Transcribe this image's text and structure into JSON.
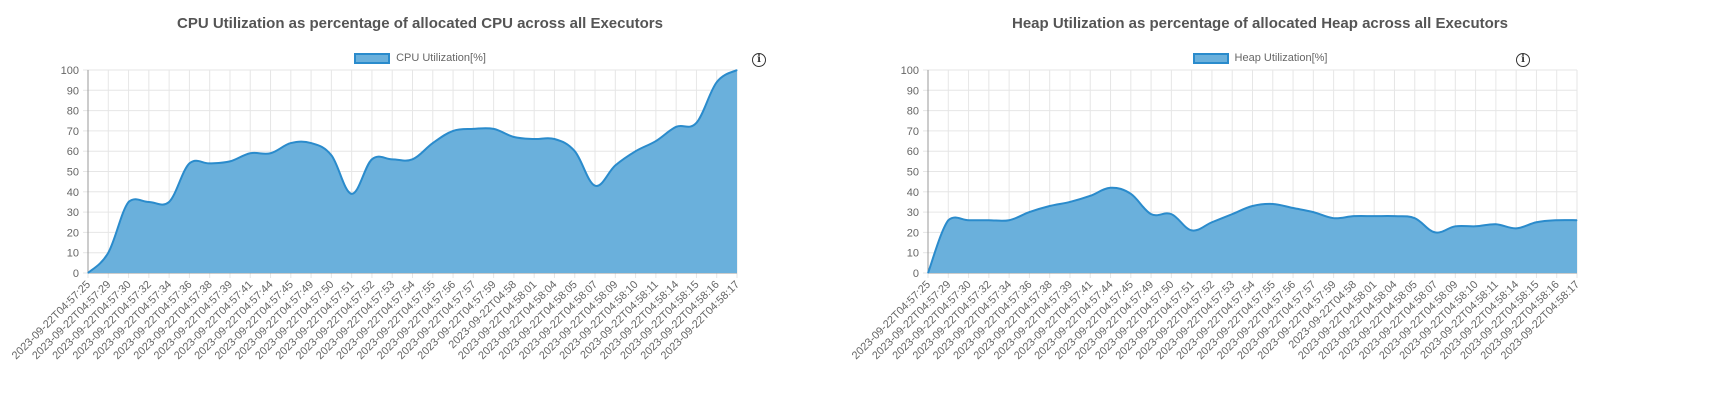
{
  "colors": {
    "fill": "#6ab0dc",
    "line": "#2a8bcc",
    "grid": "#e6e6e6",
    "axis": "#999999"
  },
  "info_icon": {
    "icon": "info-circle-icon",
    "glyph": "i"
  },
  "chart_data": [
    {
      "type": "area",
      "title": "CPU Utilization as percentage of allocated CPU across all Executors",
      "legend": "CPU Utilization[%]",
      "legend_position": "top-center",
      "grid": true,
      "ylim": [
        0,
        100
      ],
      "yticks": [
        0,
        10,
        20,
        30,
        40,
        50,
        60,
        70,
        80,
        90,
        100
      ],
      "x": [
        "2023-09-22T04:57:25",
        "2023-09-22T04:57:29",
        "2023-09-22T04:57:30",
        "2023-09-22T04:57:32",
        "2023-09-22T04:57:34",
        "2023-09-22T04:57:36",
        "2023-09-22T04:57:38",
        "2023-09-22T04:57:39",
        "2023-09-22T04:57:41",
        "2023-09-22T04:57:44",
        "2023-09-22T04:57:45",
        "2023-09-22T04:57:49",
        "2023-09-22T04:57:50",
        "2023-09-22T04:57:51",
        "2023-09-22T04:57:52",
        "2023-09-22T04:57:53",
        "2023-09-22T04:57:54",
        "2023-09-22T04:57:55",
        "2023-09-22T04:57:56",
        "2023-09-22T04:57:57",
        "2023-09-22T04:57:59",
        "2023-09-22T04:58",
        "2023-09-22T04:58:01",
        "2023-09-22T04:58:04",
        "2023-09-22T04:58:05",
        "2023-09-22T04:58:07",
        "2023-09-22T04:58:09",
        "2023-09-22T04:58:10",
        "2023-09-22T04:58:11",
        "2023-09-22T04:58:14",
        "2023-09-22T04:58:15",
        "2023-09-22T04:58:16",
        "2023-09-22T04:58:17"
      ],
      "series": [
        {
          "name": "CPU Utilization[%]",
          "values": [
            0,
            10,
            35,
            35,
            35,
            54,
            54,
            55,
            59,
            59,
            64,
            64,
            58,
            39,
            56,
            56,
            56,
            64,
            70,
            71,
            71,
            67,
            66,
            66,
            60,
            43,
            53,
            60,
            65,
            72,
            74,
            94,
            100
          ]
        }
      ]
    },
    {
      "type": "area",
      "title": "Heap Utilization as percentage of allocated Heap across all Executors",
      "legend": "Heap Utilization[%]",
      "legend_position": "top-center",
      "grid": true,
      "ylim": [
        0,
        100
      ],
      "yticks": [
        0,
        10,
        20,
        30,
        40,
        50,
        60,
        70,
        80,
        90,
        100
      ],
      "x": [
        "2023-09-22T04:57:25",
        "2023-09-22T04:57:29",
        "2023-09-22T04:57:30",
        "2023-09-22T04:57:32",
        "2023-09-22T04:57:34",
        "2023-09-22T04:57:36",
        "2023-09-22T04:57:38",
        "2023-09-22T04:57:39",
        "2023-09-22T04:57:41",
        "2023-09-22T04:57:44",
        "2023-09-22T04:57:45",
        "2023-09-22T04:57:49",
        "2023-09-22T04:57:50",
        "2023-09-22T04:57:51",
        "2023-09-22T04:57:52",
        "2023-09-22T04:57:53",
        "2023-09-22T04:57:54",
        "2023-09-22T04:57:55",
        "2023-09-22T04:57:56",
        "2023-09-22T04:57:57",
        "2023-09-22T04:57:59",
        "2023-09-22T04:58",
        "2023-09-22T04:58:01",
        "2023-09-22T04:58:04",
        "2023-09-22T04:58:05",
        "2023-09-22T04:58:07",
        "2023-09-22T04:58:09",
        "2023-09-22T04:58:10",
        "2023-09-22T04:58:11",
        "2023-09-22T04:58:14",
        "2023-09-22T04:58:15",
        "2023-09-22T04:58:16",
        "2023-09-22T04:58:17"
      ],
      "series": [
        {
          "name": "Heap Utilization[%]",
          "values": [
            0,
            26,
            26,
            26,
            26,
            30,
            33,
            35,
            38,
            42,
            39,
            29,
            29,
            21,
            25,
            29,
            33,
            34,
            32,
            30,
            27,
            28,
            28,
            28,
            27,
            20,
            23,
            23,
            24,
            22,
            25,
            26,
            26
          ]
        }
      ]
    }
  ]
}
